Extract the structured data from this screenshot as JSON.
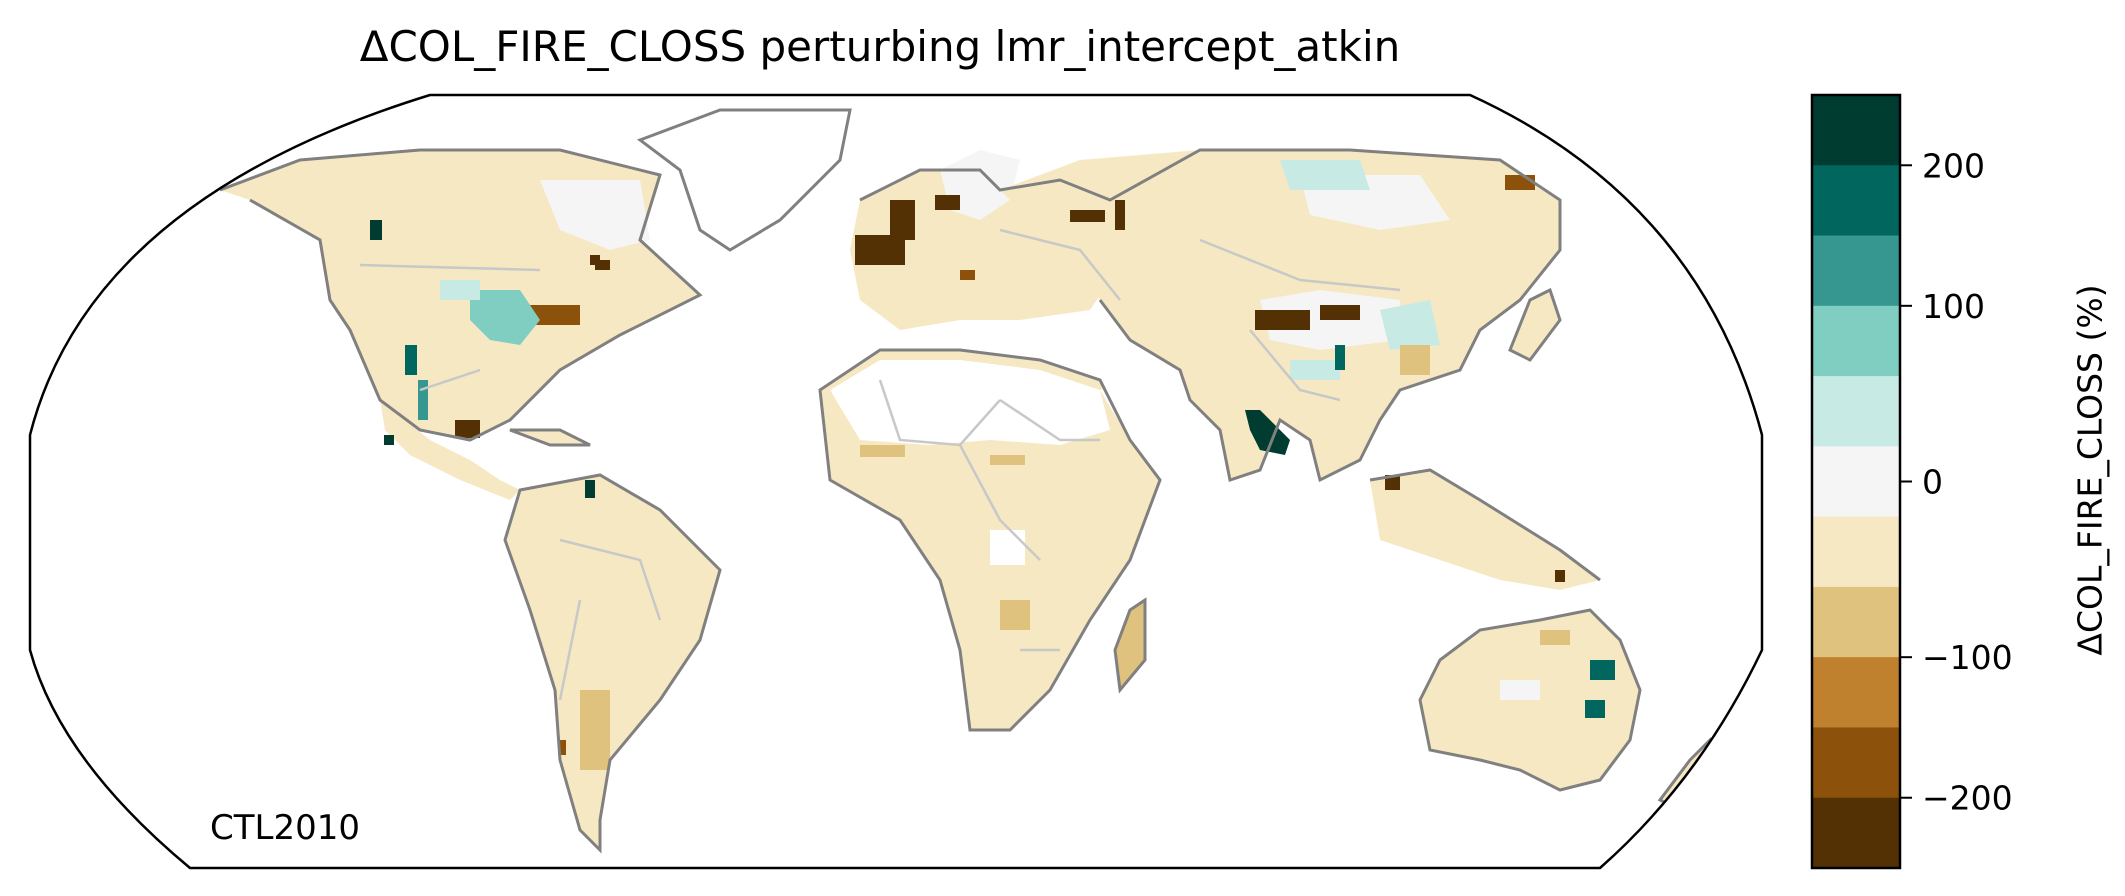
{
  "figure": {
    "title": "ΔCOL_FIRE_CLOSS perturbing lmr_intercept_atkin",
    "corner_label": "CTL2010",
    "projection": "Robinson",
    "colorbar": {
      "label": "ΔCOL_FIRE_CLOSS (%)",
      "ticks": [
        "200",
        "100",
        "0",
        "−100",
        "−200"
      ],
      "bins_top_to_bottom": [
        {
          "range": "200 to 225",
          "color": "#003c30"
        },
        {
          "range": "150 to 200",
          "color": "#01665e"
        },
        {
          "range": "100 to 150",
          "color": "#35978f"
        },
        {
          "range": "50 to 100",
          "color": "#80cdc1"
        },
        {
          "range": "0 to 50",
          "color": "#c7eae5"
        },
        {
          "range": "-0 to 0",
          "color": "#f5f5f5"
        },
        {
          "range": "-50 to 0",
          "color": "#f6e8c3"
        },
        {
          "range": "-100 to -50",
          "color": "#dfc27d"
        },
        {
          "range": "-150 to -100",
          "color": "#bf812d"
        },
        {
          "range": "-200 to -150",
          "color": "#8c510a"
        },
        {
          "range": "-225 to -200",
          "color": "#543005"
        }
      ]
    },
    "colors": {
      "land_background": "#f6e8c3",
      "coastline": "#808080",
      "borders": "#c8c8c8",
      "neutral": "#f5f5f5",
      "neg_strong": "#543005",
      "neg_mid": "#8c510a",
      "neg_light": "#dfc27d",
      "pos_light": "#c7eae5",
      "pos_mid": "#80cdc1",
      "pos_strong": "#01665e",
      "pos_max": "#003c30"
    },
    "highlighted_regions": [
      {
        "name": "Western Europe",
        "value_class": "neg_strong"
      },
      {
        "name": "Eastern United States",
        "value_class": "neg_mid"
      },
      {
        "name": "Central United States",
        "value_class": "pos_mid"
      },
      {
        "name": "Mexico",
        "value_class": "pos_strong"
      },
      {
        "name": "Northern China",
        "value_class": "pos_light"
      },
      {
        "name": "Tibetan Plateau",
        "value_class": "neg_strong"
      },
      {
        "name": "Western India",
        "value_class": "pos_max"
      },
      {
        "name": "Eastern Australia",
        "value_class": "pos_strong"
      },
      {
        "name": "Sahara",
        "value_class": "neutral"
      }
    ]
  }
}
